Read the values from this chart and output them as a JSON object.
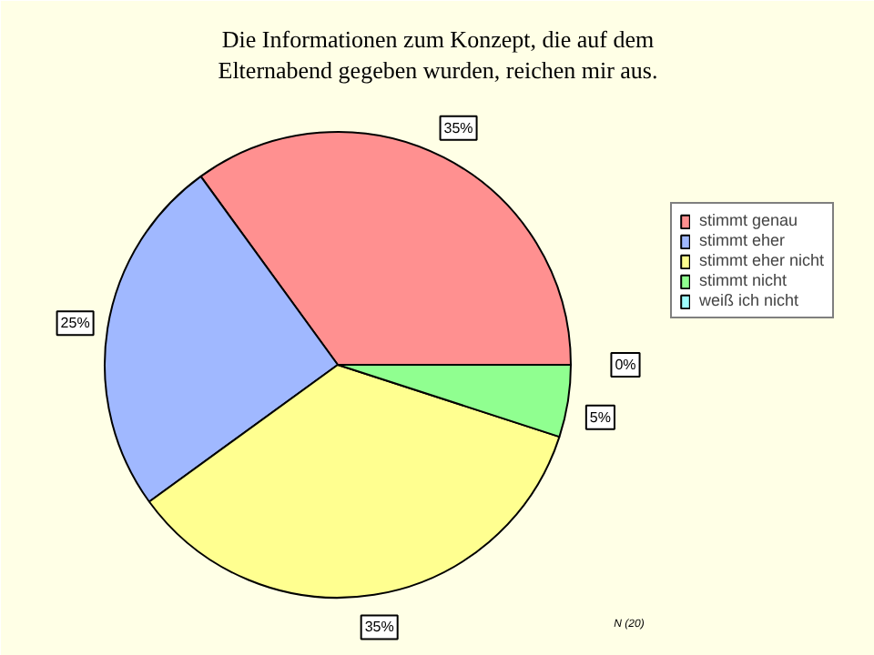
{
  "chart_data": {
    "type": "pie",
    "title": "Die Informationen zum Konzept, die auf dem Elternabend gegeben wurden, reichen mir aus.",
    "categories": [
      "stimmt genau",
      "stimmt eher",
      "stimmt eher nicht",
      "stimmt nicht",
      "weiß ich nicht"
    ],
    "values": [
      35,
      25,
      35,
      5,
      0
    ],
    "value_labels": [
      "35%",
      "25%",
      "35%",
      "5%",
      "0%"
    ],
    "colors": [
      "#ff9090",
      "#a0b8ff",
      "#ffff90",
      "#90ff90",
      "#a0ffff"
    ],
    "legend": "right",
    "annotations": [
      "N (20)"
    ]
  }
}
